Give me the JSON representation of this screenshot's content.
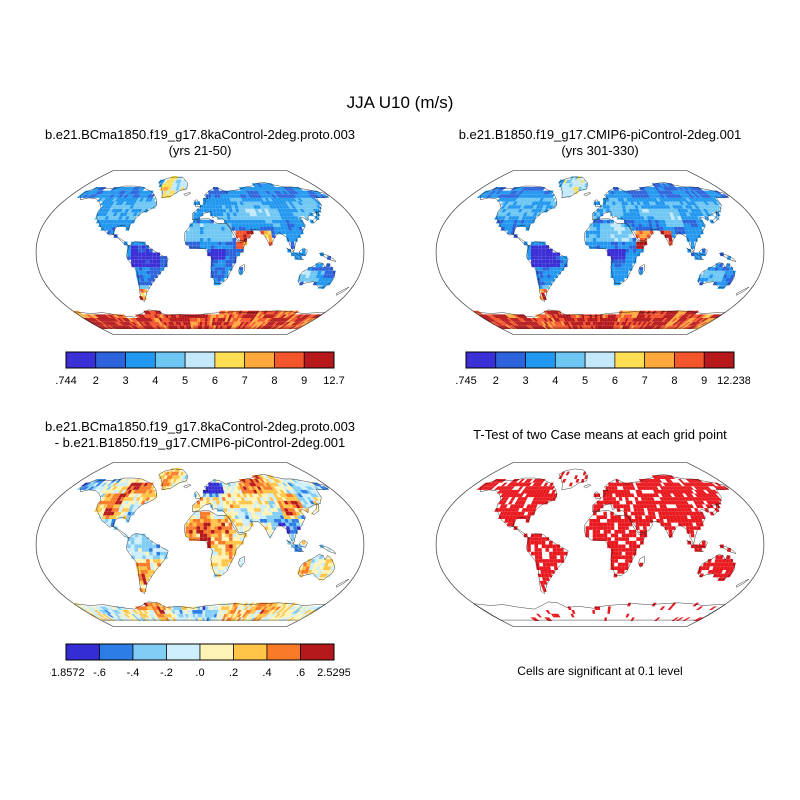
{
  "chart_data": {
    "type": "heatmap",
    "projection": "robinson",
    "figure_title": "JJA U10 (m/s)",
    "units": "m/s",
    "season": "JJA",
    "panels": [
      {
        "id": "case1",
        "title_lines": [
          "b.e21.BCma1850.f19_g17.8kaControl-2deg.proto.003",
          "(yrs 21-50)"
        ],
        "field": "climo",
        "seed": 3.7,
        "min": 0.744,
        "max": 12.7,
        "colorbar": {
          "labels": [
            ".744",
            "2",
            "3",
            "4",
            "5",
            "6",
            "7",
            "8",
            "9",
            "12.7"
          ],
          "thresholds": [
            0.744,
            2,
            3,
            4,
            5,
            6,
            7,
            8,
            9,
            12.7
          ],
          "colors": [
            "#3b2fd6",
            "#2d64dc",
            "#2297ef",
            "#6ec6f3",
            "#c3e9fb",
            "#ffdf55",
            "#ffa93c",
            "#f4552b",
            "#b5191c"
          ]
        }
      },
      {
        "id": "case2",
        "title_lines": [
          "b.e21.B1850.f19_g17.CMIP6-piControl-2deg.001",
          "(yrs 301-330)"
        ],
        "field": "climo",
        "seed": 9.4,
        "min": 0.745,
        "max": 12.238,
        "colorbar": {
          "labels": [
            ".745",
            "2",
            "3",
            "4",
            "5",
            "6",
            "7",
            "8",
            "9",
            "12.238"
          ],
          "thresholds": [
            0.745,
            2,
            3,
            4,
            5,
            6,
            7,
            8,
            9,
            12.238
          ],
          "colors": [
            "#3b2fd6",
            "#2d64dc",
            "#2297ef",
            "#6ec6f3",
            "#c3e9fb",
            "#ffdf55",
            "#ffa93c",
            "#f4552b",
            "#b5191c"
          ]
        }
      },
      {
        "id": "difference",
        "title_lines": [
          "b.e21.BCma1850.f19_g17.8kaControl-2deg.proto.003",
          "- b.e21.B1850.f19_g17.CMIP6-piControl-2deg.001"
        ],
        "field": "diff",
        "seed": 5.2,
        "min": -1.8572,
        "max": 2.5295,
        "colorbar": {
          "labels": [
            "-1.8572",
            "-.6",
            "-.4",
            "-.2",
            ".0",
            ".2",
            ".4",
            ".6",
            "2.5295"
          ],
          "thresholds": [
            -1.8572,
            -0.6,
            -0.4,
            -0.2,
            0,
            0.2,
            0.4,
            0.6,
            2.5295
          ],
          "colors": [
            "#342dd4",
            "#2d7de6",
            "#82cdf5",
            "#cdeefb",
            "#fff4b5",
            "#ffc448",
            "#f97b28",
            "#b5191c"
          ]
        }
      },
      {
        "id": "ttest",
        "title_lines": [
          "T-Test of two Case means at each grid point"
        ],
        "field": "ttest",
        "seed": 7.7,
        "sig_color": "#e8191f",
        "caption": "Cells are significant at 0.1 level"
      }
    ]
  },
  "world_polygons": {
    "north_america": [
      [
        -166,
        66
      ],
      [
        -158,
        71
      ],
      [
        -145,
        70
      ],
      [
        -130,
        70
      ],
      [
        -118,
        73
      ],
      [
        -103,
        73
      ],
      [
        -90,
        72
      ],
      [
        -78,
        69
      ],
      [
        -68,
        66
      ],
      [
        -60,
        60
      ],
      [
        -55,
        52
      ],
      [
        -62,
        47
      ],
      [
        -70,
        44
      ],
      [
        -74,
        40
      ],
      [
        -77,
        35
      ],
      [
        -80,
        31
      ],
      [
        -81,
        25
      ],
      [
        -87,
        30
      ],
      [
        -94,
        29
      ],
      [
        -97,
        25
      ],
      [
        -97,
        20
      ],
      [
        -101,
        19
      ],
      [
        -106,
        23
      ],
      [
        -112,
        27
      ],
      [
        -117,
        33
      ],
      [
        -122,
        38
      ],
      [
        -125,
        44
      ],
      [
        -124,
        49
      ],
      [
        -131,
        55
      ],
      [
        -140,
        59
      ],
      [
        -151,
        60
      ],
      [
        -160,
        58
      ],
      [
        -166,
        62
      ]
    ],
    "central_america": [
      [
        -97,
        20
      ],
      [
        -90,
        15
      ],
      [
        -83,
        9
      ],
      [
        -78,
        7
      ],
      [
        -82,
        11
      ],
      [
        -88,
        15
      ],
      [
        -93,
        18
      ],
      [
        -98,
        20
      ]
    ],
    "greenland": [
      [
        -52,
        60
      ],
      [
        -40,
        62
      ],
      [
        -30,
        68
      ],
      [
        -20,
        70
      ],
      [
        -20,
        76
      ],
      [
        -30,
        82
      ],
      [
        -46,
        83
      ],
      [
        -60,
        81
      ],
      [
        -68,
        77
      ],
      [
        -60,
        72
      ],
      [
        -54,
        66
      ]
    ],
    "iceland": [
      [
        -23,
        64
      ],
      [
        -15,
        66
      ],
      [
        -13,
        65
      ],
      [
        -20,
        62
      ]
    ],
    "south_america": [
      [
        -78,
        7
      ],
      [
        -72,
        12
      ],
      [
        -63,
        11
      ],
      [
        -55,
        5
      ],
      [
        -46,
        -1
      ],
      [
        -35,
        -7
      ],
      [
        -38,
        -15
      ],
      [
        -45,
        -23
      ],
      [
        -53,
        -31
      ],
      [
        -59,
        -38
      ],
      [
        -64,
        -43
      ],
      [
        -68,
        -49
      ],
      [
        -72,
        -54
      ],
      [
        -75,
        -51
      ],
      [
        -73,
        -43
      ],
      [
        -71,
        -33
      ],
      [
        -70,
        -21
      ],
      [
        -75,
        -14
      ],
      [
        -81,
        -5
      ],
      [
        -80,
        1
      ]
    ],
    "africa": [
      [
        -17,
        14
      ],
      [
        -17,
        22
      ],
      [
        -10,
        31
      ],
      [
        -5,
        36
      ],
      [
        3,
        37
      ],
      [
        11,
        37
      ],
      [
        20,
        32
      ],
      [
        30,
        32
      ],
      [
        34,
        27
      ],
      [
        38,
        18
      ],
      [
        43,
        11
      ],
      [
        51,
        12
      ],
      [
        46,
        1
      ],
      [
        40,
        -5
      ],
      [
        38,
        -13
      ],
      [
        34,
        -21
      ],
      [
        31,
        -29
      ],
      [
        25,
        -34
      ],
      [
        18,
        -34
      ],
      [
        14,
        -26
      ],
      [
        12,
        -16
      ],
      [
        14,
        -7
      ],
      [
        9,
        -1
      ],
      [
        6,
        4
      ],
      [
        -4,
        5
      ],
      [
        -10,
        5
      ],
      [
        -16,
        10
      ]
    ],
    "madagascar": [
      [
        44,
        -16
      ],
      [
        49,
        -13
      ],
      [
        50,
        -19
      ],
      [
        46,
        -25
      ],
      [
        43,
        -21
      ]
    ],
    "eurasia": [
      [
        -9,
        36
      ],
      [
        -9,
        43
      ],
      [
        -2,
        48
      ],
      [
        3,
        52
      ],
      [
        8,
        56
      ],
      [
        5,
        59
      ],
      [
        11,
        59
      ],
      [
        6,
        63
      ],
      [
        14,
        68
      ],
      [
        22,
        71
      ],
      [
        30,
        70
      ],
      [
        38,
        66
      ],
      [
        45,
        68
      ],
      [
        58,
        69
      ],
      [
        70,
        72
      ],
      [
        80,
        73
      ],
      [
        92,
        76
      ],
      [
        106,
        77
      ],
      [
        118,
        74
      ],
      [
        130,
        72
      ],
      [
        142,
        72
      ],
      [
        154,
        70
      ],
      [
        165,
        68
      ],
      [
        178,
        65
      ],
      [
        178,
        62
      ],
      [
        168,
        60
      ],
      [
        159,
        61
      ],
      [
        155,
        52
      ],
      [
        147,
        45
      ],
      [
        137,
        43
      ],
      [
        129,
        40
      ],
      [
        126,
        35
      ],
      [
        121,
        39
      ],
      [
        117,
        37
      ],
      [
        121,
        30
      ],
      [
        114,
        21
      ],
      [
        108,
        16
      ],
      [
        105,
        9
      ],
      [
        103,
        1
      ],
      [
        99,
        8
      ],
      [
        97,
        16
      ],
      [
        93,
        19
      ],
      [
        89,
        22
      ],
      [
        85,
        19
      ],
      [
        80,
        12
      ],
      [
        77,
        7
      ],
      [
        73,
        17
      ],
      [
        69,
        22
      ],
      [
        66,
        25
      ],
      [
        60,
        25
      ],
      [
        57,
        26
      ],
      [
        59,
        22
      ],
      [
        55,
        16
      ],
      [
        48,
        13
      ],
      [
        43,
        13
      ],
      [
        39,
        21
      ],
      [
        34,
        28
      ],
      [
        32,
        31
      ],
      [
        27,
        37
      ],
      [
        22,
        37
      ],
      [
        19,
        40
      ],
      [
        15,
        38
      ],
      [
        13,
        45
      ],
      [
        5,
        43
      ],
      [
        -2,
        37
      ]
    ],
    "britain": [
      [
        -5,
        50
      ],
      [
        1,
        51
      ],
      [
        -1,
        54
      ],
      [
        -4,
        58
      ],
      [
        -7,
        57
      ],
      [
        -6,
        53
      ]
    ],
    "japan": [
      [
        132,
        33
      ],
      [
        140,
        37
      ],
      [
        144,
        44
      ],
      [
        142,
        45
      ],
      [
        138,
        39
      ],
      [
        130,
        34
      ]
    ],
    "sumatra_java": [
      [
        95,
        5
      ],
      [
        102,
        -2
      ],
      [
        107,
        -7
      ],
      [
        114,
        -8
      ],
      [
        110,
        -4
      ],
      [
        100,
        2
      ]
    ],
    "borneo": [
      [
        109,
        1
      ],
      [
        114,
        5
      ],
      [
        118,
        2
      ],
      [
        116,
        -3
      ],
      [
        110,
        -2
      ]
    ],
    "new_guinea": [
      [
        131,
        -1
      ],
      [
        140,
        -3
      ],
      [
        147,
        -7
      ],
      [
        150,
        -10
      ],
      [
        143,
        -8
      ],
      [
        134,
        -3
      ]
    ],
    "australia": [
      [
        113,
        -25
      ],
      [
        115,
        -21
      ],
      [
        122,
        -17
      ],
      [
        127,
        -14
      ],
      [
        131,
        -11
      ],
      [
        136,
        -12
      ],
      [
        139,
        -17
      ],
      [
        141,
        -12
      ],
      [
        145,
        -15
      ],
      [
        149,
        -20
      ],
      [
        153,
        -26
      ],
      [
        152,
        -32
      ],
      [
        146,
        -39
      ],
      [
        140,
        -38
      ],
      [
        135,
        -35
      ],
      [
        131,
        -32
      ],
      [
        124,
        -33
      ],
      [
        118,
        -35
      ],
      [
        114,
        -33
      ]
    ],
    "new_zealand": [
      [
        167,
        -45
      ],
      [
        173,
        -40
      ],
      [
        176,
        -38
      ],
      [
        174,
        -42
      ],
      [
        169,
        -47
      ]
    ],
    "antarctica": [
      [
        -180,
        -65
      ],
      [
        -160,
        -67
      ],
      [
        -140,
        -66
      ],
      [
        -120,
        -69
      ],
      [
        -100,
        -71
      ],
      [
        -85,
        -67
      ],
      [
        -72,
        -63
      ],
      [
        -60,
        -64
      ],
      [
        -50,
        -69
      ],
      [
        -30,
        -68
      ],
      [
        -10,
        -70
      ],
      [
        10,
        -67
      ],
      [
        30,
        -66
      ],
      [
        50,
        -65
      ],
      [
        70,
        -66
      ],
      [
        90,
        -65
      ],
      [
        110,
        -64
      ],
      [
        130,
        -65
      ],
      [
        150,
        -67
      ],
      [
        170,
        -66
      ],
      [
        180,
        -66
      ],
      [
        180,
        -83
      ],
      [
        -180,
        -83
      ]
    ]
  }
}
